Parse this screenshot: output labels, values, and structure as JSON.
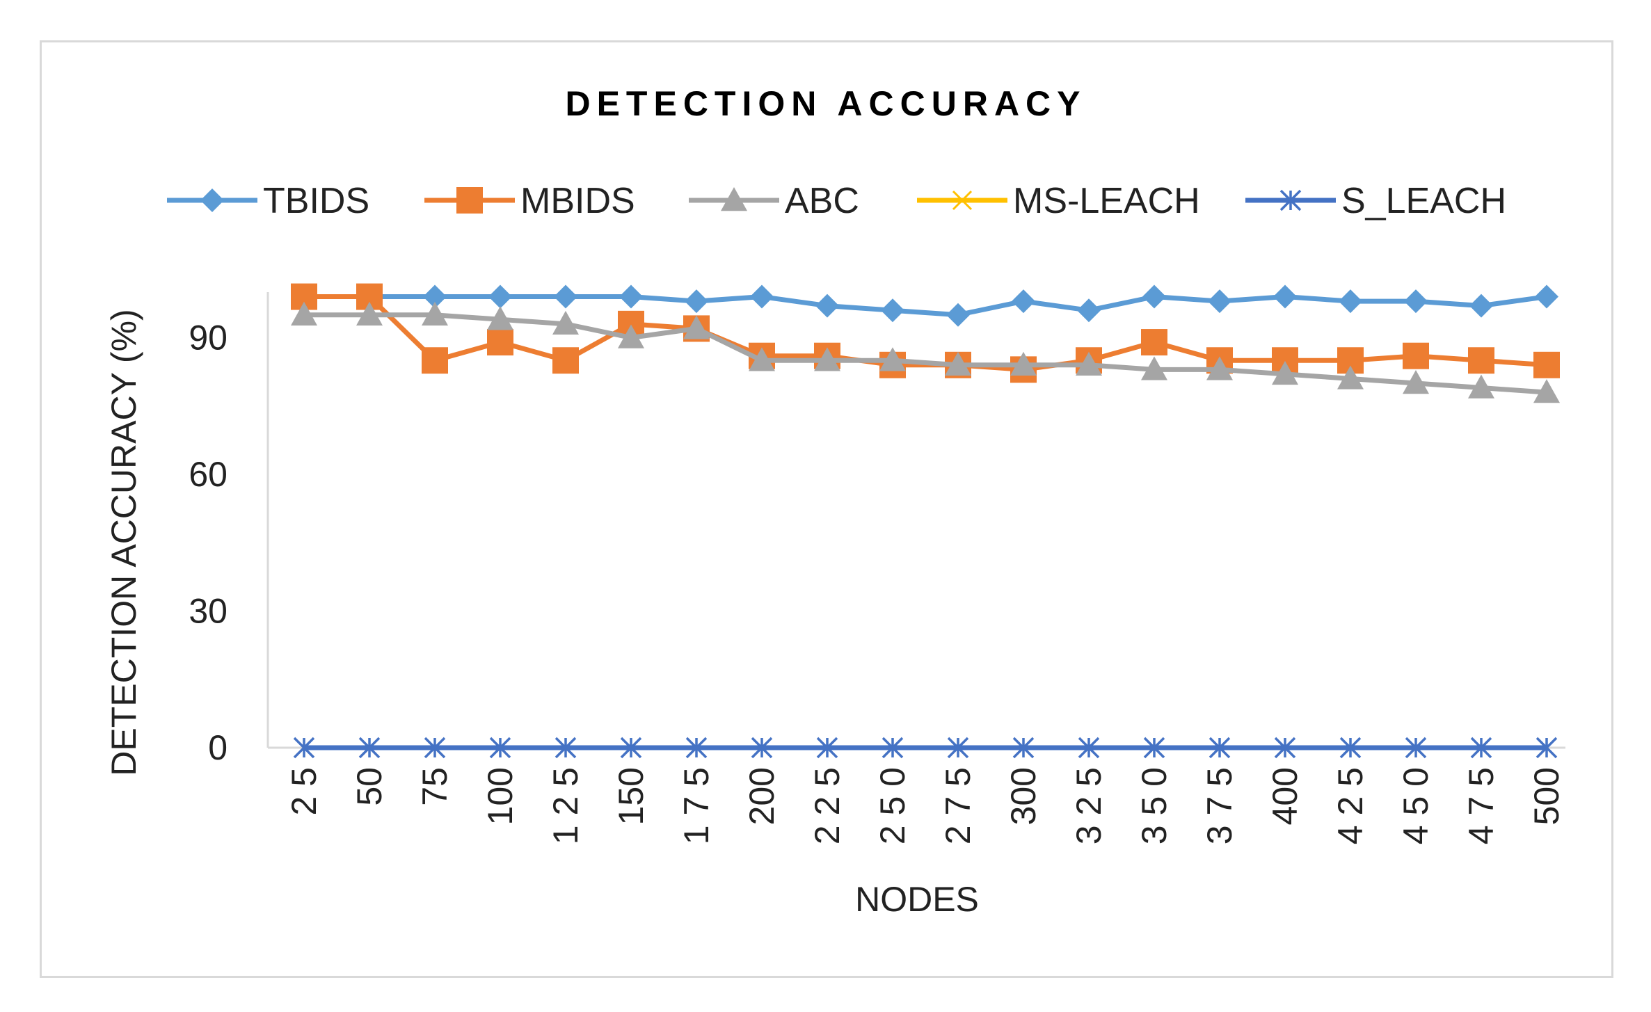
{
  "chart_data": {
    "type": "line",
    "title": "DETECTION ACCURACY",
    "xlabel": "NODES",
    "ylabel": "DETECTION ACCURACY (%)",
    "ylim": [
      0,
      100
    ],
    "yticks": [
      0,
      30,
      60,
      90
    ],
    "ytick_labels": [
      "0",
      "30",
      "60",
      "90"
    ],
    "categories": [
      "2 5",
      "50",
      "75",
      "100",
      "1 2 5",
      "150",
      "1 7 5",
      "200",
      "2 2 5",
      "2 5 0",
      "2 7 5",
      "300",
      "3 2 5",
      "3 5 0",
      "3 7 5",
      "400",
      "4 2 5",
      "4 5 0",
      "4 7 5",
      "500"
    ],
    "legend_position": "top",
    "grid": false,
    "series": [
      {
        "name": "TBIDS",
        "color": "#5b9bd5",
        "marker": "diamond",
        "values": [
          99,
          99,
          99,
          99,
          99,
          99,
          98,
          99,
          97,
          96,
          95,
          98,
          96,
          99,
          98,
          99,
          98,
          98,
          97,
          99
        ]
      },
      {
        "name": "MBIDS",
        "color": "#ed7d31",
        "marker": "square",
        "values": [
          99,
          99,
          85,
          89,
          85,
          93,
          92,
          86,
          86,
          84,
          84,
          83,
          85,
          89,
          85,
          85,
          85,
          86,
          85,
          84
        ]
      },
      {
        "name": "ABC",
        "color": "#a5a5a5",
        "marker": "triangle",
        "values": [
          95,
          95,
          95,
          94,
          93,
          90,
          92,
          85,
          85,
          85,
          84,
          84,
          84,
          83,
          83,
          82,
          81,
          80,
          79,
          78
        ]
      },
      {
        "name": "MS-LEACH",
        "color": "#ffc000",
        "marker": "x",
        "values": [
          0,
          0,
          0,
          0,
          0,
          0,
          0,
          0,
          0,
          0,
          0,
          0,
          0,
          0,
          0,
          0,
          0,
          0,
          0,
          0
        ]
      },
      {
        "name": "S_LEACH",
        "color": "#4472c4",
        "marker": "star",
        "values": [
          0,
          0,
          0,
          0,
          0,
          0,
          0,
          0,
          0,
          0,
          0,
          0,
          0,
          0,
          0,
          0,
          0,
          0,
          0,
          0
        ]
      }
    ]
  }
}
